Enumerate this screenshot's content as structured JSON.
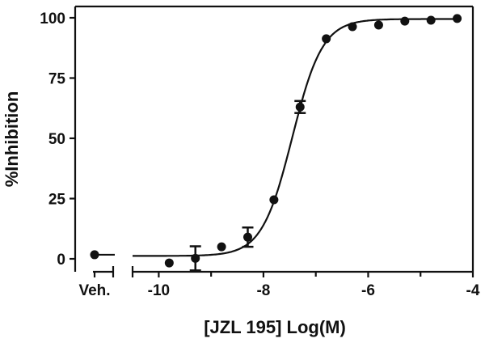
{
  "chart_data": {
    "type": "scatter",
    "title": "",
    "xlabel": "[JZL 195] Log(M)",
    "ylabel": "%Inhibition",
    "xlim": [
      -10.5,
      -4
    ],
    "ylim": [
      0,
      100
    ],
    "x_ticks": [
      -10,
      -8,
      -6,
      -4
    ],
    "x_tick_labels": [
      "-10",
      "-8",
      "-6",
      "-4"
    ],
    "x_minor_ticks": [
      -9,
      -7,
      -5
    ],
    "y_ticks": [
      0,
      25,
      50,
      75,
      100
    ],
    "y_tick_labels": [
      "0",
      "25",
      "50",
      "75",
      "100"
    ],
    "vehicle": {
      "label": "Veh.",
      "y": 1.7
    },
    "points": [
      {
        "x": -9.8,
        "y": -1.7,
        "err": 0
      },
      {
        "x": -9.3,
        "y": 0.2,
        "err": 5
      },
      {
        "x": -8.8,
        "y": 5,
        "err": 0
      },
      {
        "x": -8.3,
        "y": 9,
        "err": 4
      },
      {
        "x": -7.8,
        "y": 24.5,
        "err": 0
      },
      {
        "x": -7.3,
        "y": 63,
        "err": 2.5
      },
      {
        "x": -6.8,
        "y": 91.3,
        "err": 0
      },
      {
        "x": -6.3,
        "y": 96.3,
        "err": 0
      },
      {
        "x": -5.8,
        "y": 97,
        "err": 0
      },
      {
        "x": -5.3,
        "y": 98.6,
        "err": 0
      },
      {
        "x": -4.8,
        "y": 99,
        "err": 0
      },
      {
        "x": -4.3,
        "y": 99.7,
        "err": 0
      }
    ],
    "fit": {
      "model": "sigmoidal dose-response",
      "bottom": 1.2,
      "top": 99.5,
      "logEC50": -7.45,
      "hill": 1.5
    },
    "grid": false,
    "color": "#111111"
  }
}
